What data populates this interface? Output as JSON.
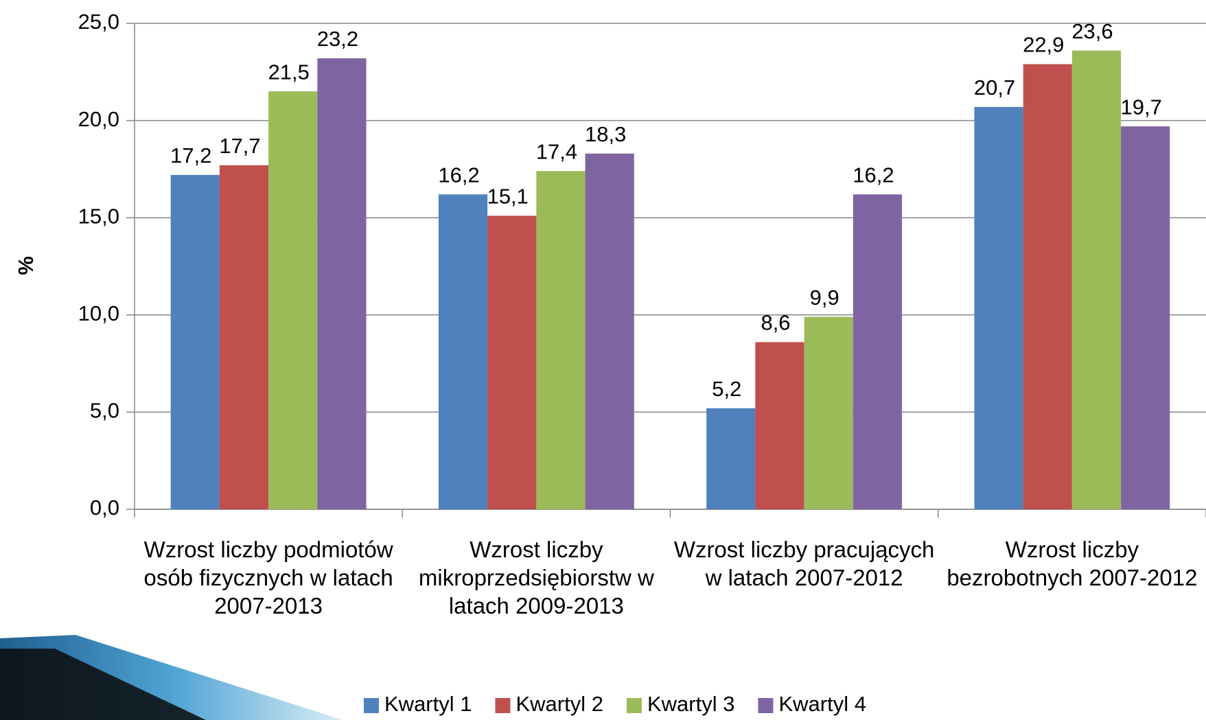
{
  "chart_data": {
    "type": "bar",
    "y_label": "%",
    "categories": [
      "Wzrost liczby podmiotów osób fizycznych w latach 2007-2013",
      "Wzrost liczby mikroprzedsiębiorstw w latach 2009-2013",
      "Wzrost liczby pracujących w latach 2007-2012",
      "Wzrost liczby bezrobotnych 2007-2012"
    ],
    "series": [
      {
        "name": "Kwartyl 1",
        "color": "#4f81bd",
        "values": [
          17.2,
          16.2,
          5.2,
          20.7
        ],
        "value_labels": [
          "17,2",
          "16,2",
          "5,2",
          "20,7"
        ]
      },
      {
        "name": "Kwartyl 2",
        "color": "#c0504d",
        "values": [
          17.7,
          15.1,
          8.6,
          22.9
        ],
        "value_labels": [
          "17,7",
          "15,1",
          "8,6",
          "22,9"
        ]
      },
      {
        "name": "Kwartyl 3",
        "color": "#9bbb59",
        "values": [
          21.5,
          17.4,
          9.9,
          23.6
        ],
        "value_labels": [
          "21,5",
          "17,4",
          "9,9",
          "23,6"
        ]
      },
      {
        "name": "Kwartyl 4",
        "color": "#8064a2",
        "values": [
          23.2,
          18.3,
          16.2,
          19.7
        ],
        "value_labels": [
          "23,2",
          "18,3",
          "16,2",
          "19,7"
        ]
      }
    ],
    "ylim": [
      0,
      25
    ],
    "yticks": [
      {
        "value": 0,
        "label": "0,0"
      },
      {
        "value": 5,
        "label": "5,0"
      },
      {
        "value": 10,
        "label": "10,0"
      },
      {
        "value": 15,
        "label": "15,0"
      },
      {
        "value": 20,
        "label": "20,0"
      },
      {
        "value": 25,
        "label": "25,0"
      }
    ],
    "grid": true,
    "legend": "bottom"
  }
}
